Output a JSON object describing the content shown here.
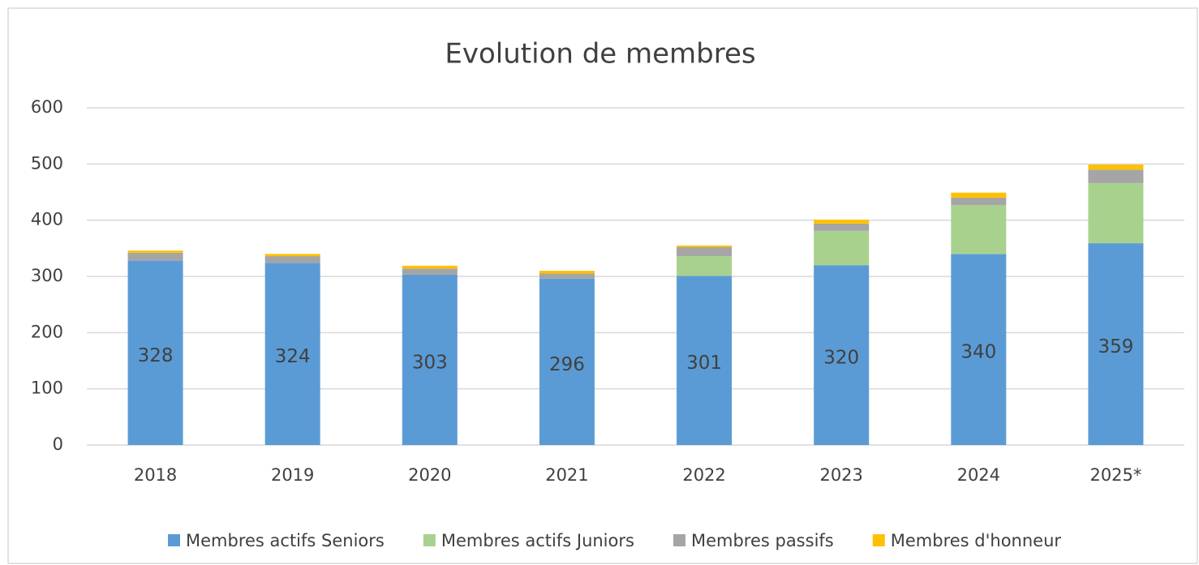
{
  "chart_data": {
    "type": "bar",
    "stacked": true,
    "title": "Evolution de membres",
    "categories": [
      "2018",
      "2019",
      "2020",
      "2021",
      "2022",
      "2023",
      "2024",
      "2025*"
    ],
    "series": [
      {
        "name": "Membres actifs Seniors",
        "color": "#5b9bd5",
        "values": [
          328,
          324,
          303,
          296,
          301,
          320,
          340,
          359
        ],
        "show_labels": true
      },
      {
        "name": "Membres actifs Juniors",
        "color": "#a9d18e",
        "values": [
          0,
          0,
          0,
          0,
          35,
          61,
          87,
          107
        ]
      },
      {
        "name": "Membres passifs",
        "color": "#a5a5a5",
        "values": [
          14,
          12,
          11,
          9,
          16,
          13,
          13,
          24
        ]
      },
      {
        "name": "Membres d'honneur",
        "color": "#ffc000",
        "values": [
          4,
          4,
          5,
          5,
          3,
          7,
          9,
          9
        ]
      }
    ],
    "ylim": [
      0,
      600
    ],
    "yticks": [
      0,
      100,
      200,
      300,
      400,
      500,
      600
    ],
    "grid": true,
    "legend": "bottom"
  }
}
